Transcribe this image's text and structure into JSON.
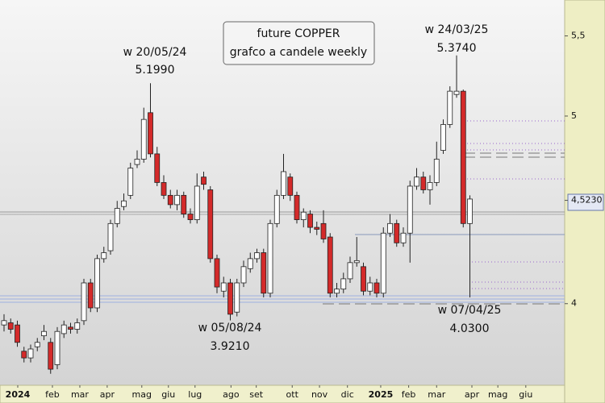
{
  "chart_data": {
    "type": "candlestick",
    "title": [
      "future COPPER",
      "grafco a candele weekly"
    ],
    "annotations": [
      {
        "week": "w 20/05/24",
        "price": "5.1990"
      },
      {
        "week": "w 24/03/25",
        "price": "5.3740"
      },
      {
        "week": "w 05/08/24",
        "price": "3.9210"
      },
      {
        "week": "w 07/04/25",
        "price": "4.0300"
      }
    ],
    "log_scale": true,
    "up_color": "#ffffff",
    "down_color": "#d42a2a",
    "ylim": [
      3.63,
      5.74
    ],
    "yticks": [
      {
        "value": 5.5,
        "label": "5,5"
      },
      5,
      {
        "value": 4.523,
        "label": "4,5230"
      },
      4
    ],
    "xlim": [
      -0.606,
      84.24
    ],
    "xticks": [
      {
        "value": 2.06,
        "label": "2024"
      },
      {
        "value": 7.27,
        "label": "feb"
      },
      {
        "value": 11.39,
        "label": "mar"
      },
      {
        "value": 15.5,
        "label": "apr"
      },
      {
        "value": 20.7,
        "label": "mag"
      },
      {
        "value": 24.7,
        "label": "giu"
      },
      {
        "value": 28.7,
        "label": "lug"
      },
      {
        "value": 34.1,
        "label": "ago"
      },
      {
        "value": 37.9,
        "label": "set"
      },
      {
        "value": 43.3,
        "label": "ott"
      },
      {
        "value": 47.4,
        "label": "nov"
      },
      {
        "value": 51.6,
        "label": "dic"
      },
      {
        "value": 56.6,
        "label": "2025"
      },
      {
        "value": 60.8,
        "label": "feb"
      },
      {
        "value": 65.0,
        "label": "mar"
      },
      {
        "value": 70.3,
        "label": "apr"
      },
      {
        "value": 74.2,
        "label": "mag"
      },
      {
        "value": 78.4,
        "label": "giu"
      }
    ],
    "open": [
      3.9,
      3.91,
      3.9,
      3.78,
      3.75,
      3.8,
      3.85,
      3.82,
      3.72,
      3.86,
      3.89,
      3.88,
      3.92,
      4.1,
      3.98,
      4.22,
      4.26,
      4.4,
      4.49,
      4.55,
      4.72,
      4.75,
      5.02,
      4.78,
      4.62,
      4.55,
      4.5,
      4.55,
      4.45,
      4.42,
      4.65,
      4.58,
      4.22,
      4.06,
      4.1,
      3.96,
      4.1,
      4.17,
      4.22,
      4.25,
      4.05,
      4.4,
      4.55,
      4.65,
      4.55,
      4.42,
      4.45,
      4.38,
      4.4,
      4.33,
      4.05,
      4.07,
      4.12,
      4.2,
      4.18,
      4.06,
      4.1,
      4.05,
      4.35,
      4.4,
      4.3,
      4.35,
      4.6,
      4.65,
      4.58,
      4.62,
      4.8,
      4.95,
      5.13,
      5.15,
      4.4
    ],
    "high": [
      3.95,
      3.93,
      3.92,
      3.8,
      3.81,
      3.84,
      3.9,
      3.84,
      3.89,
      3.92,
      3.91,
      3.93,
      4.12,
      4.12,
      4.24,
      4.28,
      4.42,
      4.52,
      4.56,
      4.73,
      4.8,
      5.05,
      5.199,
      4.82,
      4.66,
      4.58,
      4.58,
      4.57,
      4.48,
      4.67,
      4.68,
      4.6,
      4.24,
      4.13,
      4.12,
      4.12,
      4.21,
      4.25,
      4.27,
      4.27,
      4.42,
      4.58,
      4.78,
      4.67,
      4.57,
      4.48,
      4.47,
      4.41,
      4.47,
      4.35,
      4.1,
      4.15,
      4.23,
      4.33,
      4.2,
      4.13,
      4.12,
      4.38,
      4.45,
      4.42,
      4.38,
      4.63,
      4.7,
      4.68,
      4.66,
      4.85,
      4.98,
      5.18,
      5.374,
      5.16,
      4.55
    ],
    "low": [
      3.87,
      3.86,
      3.8,
      3.73,
      3.73,
      3.78,
      3.83,
      3.68,
      3.7,
      3.84,
      3.86,
      3.86,
      3.9,
      3.96,
      3.96,
      4.2,
      4.24,
      4.38,
      4.47,
      4.53,
      4.7,
      4.73,
      4.76,
      4.6,
      4.53,
      4.48,
      4.47,
      4.43,
      4.4,
      4.4,
      4.58,
      4.2,
      4.05,
      4.03,
      3.921,
      3.94,
      4.08,
      4.15,
      4.2,
      4.03,
      4.03,
      4.38,
      4.53,
      4.52,
      4.4,
      4.38,
      4.35,
      4.34,
      4.3,
      4.03,
      4.03,
      4.05,
      4.1,
      4.18,
      4.04,
      4.04,
      4.03,
      4.03,
      4.33,
      4.28,
      4.28,
      4.2,
      4.58,
      4.56,
      4.5,
      4.6,
      4.78,
      4.93,
      5.11,
      4.38,
      4.03
    ],
    "close": [
      3.92,
      3.88,
      3.82,
      3.75,
      3.79,
      3.82,
      3.87,
      3.7,
      3.87,
      3.9,
      3.88,
      3.91,
      4.1,
      3.98,
      4.22,
      4.25,
      4.4,
      4.48,
      4.52,
      4.7,
      4.75,
      4.98,
      4.78,
      4.62,
      4.55,
      4.5,
      4.55,
      4.45,
      4.42,
      4.6,
      4.61,
      4.22,
      4.08,
      4.1,
      3.95,
      4.1,
      4.18,
      4.22,
      4.25,
      4.05,
      4.4,
      4.55,
      4.68,
      4.55,
      4.42,
      4.46,
      4.38,
      4.37,
      4.32,
      4.05,
      4.07,
      4.12,
      4.2,
      4.21,
      4.06,
      4.1,
      4.05,
      4.35,
      4.4,
      4.3,
      4.35,
      4.6,
      4.65,
      4.58,
      4.62,
      4.75,
      4.95,
      5.15,
      5.15,
      4.4,
      4.53
    ]
  }
}
